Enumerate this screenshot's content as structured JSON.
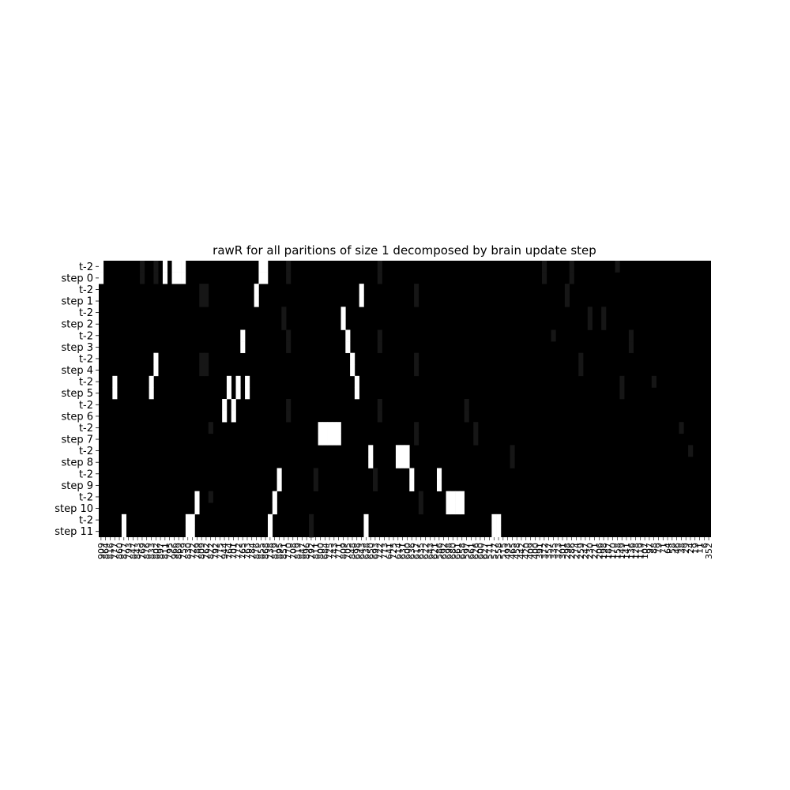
{
  "chart_data": {
    "type": "heatmap",
    "title": "rawR for all paritions of size 1 decomposed by brain update step",
    "xlabel": "",
    "ylabel": "",
    "colormap": "gray",
    "value_range": [
      0,
      1
    ],
    "grid": false,
    "legend": "none",
    "row_labels": [
      "t-2",
      "step 0",
      "t-2",
      "step 1",
      "t-2",
      "step 2",
      "t-2",
      "step 3",
      "t-2",
      "step 4",
      "t-2",
      "step 5",
      "t-2",
      "step 6",
      "t-2",
      "step 7",
      "t-2",
      "step 8",
      "t-2",
      "step 9",
      "t-2",
      "step 10",
      "t-2",
      "step 11"
    ],
    "n_columns": 134,
    "x_tick_labels": [
      "909",
      "864",
      "816",
      "777",
      "860",
      "877",
      "793",
      "847",
      "843",
      "769",
      "876",
      "833",
      "802",
      "897",
      "811",
      "795",
      "966",
      "869",
      "759",
      "830",
      "722",
      "789",
      "809",
      "762",
      "822",
      "792",
      "775",
      "944",
      "764",
      "701",
      "772",
      "765",
      "763",
      "784",
      "876",
      "855",
      "868",
      "738",
      "819",
      "895",
      "851",
      "770",
      "708",
      "819",
      "847",
      "896",
      "792",
      "811",
      "800",
      "684",
      "725",
      "743",
      "771",
      "809",
      "705",
      "848",
      "698",
      "643",
      "638",
      "650",
      "693",
      "722",
      "773",
      "641",
      "725",
      "614",
      "631",
      "600",
      "636",
      "617",
      "635",
      "622",
      "643",
      "621",
      "586",
      "692",
      "698",
      "680",
      "661",
      "658",
      "597",
      "661",
      "626",
      "600",
      "627",
      "571",
      "577",
      "558",
      "515",
      "493",
      "465",
      "458",
      "442",
      "420",
      "409",
      "400",
      "391",
      "372",
      "357",
      "335",
      "323",
      "301",
      "298",
      "286",
      "274",
      "259",
      "247",
      "230",
      "221",
      "206",
      "198",
      "187",
      "170",
      "158",
      "149",
      "141",
      "136",
      "128",
      "119",
      "107",
      "97",
      "88",
      "79",
      "71",
      "64",
      "58",
      "46",
      "38",
      "29",
      "24",
      "19",
      "11",
      "6",
      "352"
    ],
    "hot_cells": [
      {
        "row": 0,
        "cols": [
          0,
          14,
          16,
          17,
          18,
          35,
          36
        ]
      },
      {
        "row": 1,
        "cols": [
          0,
          14,
          16,
          17,
          18,
          35,
          36
        ]
      },
      {
        "row": 2,
        "cols": [
          34,
          57
        ]
      },
      {
        "row": 3,
        "cols": [
          34,
          57
        ]
      },
      {
        "row": 4,
        "cols": [
          53
        ]
      },
      {
        "row": 5,
        "cols": [
          53
        ]
      },
      {
        "row": 6,
        "cols": [
          31,
          54
        ]
      },
      {
        "row": 7,
        "cols": [
          31,
          54
        ]
      },
      {
        "row": 8,
        "cols": [
          12,
          55
        ]
      },
      {
        "row": 9,
        "cols": [
          12,
          55
        ]
      },
      {
        "row": 10,
        "cols": [
          3,
          11,
          28,
          30,
          32,
          56
        ]
      },
      {
        "row": 11,
        "cols": [
          3,
          11,
          28,
          30,
          32,
          56
        ]
      },
      {
        "row": 12,
        "cols": [
          27,
          29
        ]
      },
      {
        "row": 13,
        "cols": [
          27,
          29
        ]
      },
      {
        "row": 14,
        "cols": [
          48,
          49,
          50,
          51,
          52
        ]
      },
      {
        "row": 15,
        "cols": [
          48,
          49,
          50,
          51,
          52
        ]
      },
      {
        "row": 16,
        "cols": [
          59,
          65,
          66,
          67
        ]
      },
      {
        "row": 17,
        "cols": [
          59,
          65,
          66,
          67
        ]
      },
      {
        "row": 18,
        "cols": [
          39,
          68,
          74
        ]
      },
      {
        "row": 19,
        "cols": [
          39,
          68,
          74
        ]
      },
      {
        "row": 20,
        "cols": [
          21,
          38,
          76,
          77,
          78,
          79
        ]
      },
      {
        "row": 21,
        "cols": [
          21,
          38,
          76,
          77,
          78,
          79
        ]
      },
      {
        "row": 22,
        "cols": [
          5,
          19,
          20,
          37,
          58,
          86,
          87
        ]
      },
      {
        "row": 23,
        "cols": [
          5,
          19,
          20,
          37,
          58,
          86,
          87
        ]
      }
    ],
    "faint_cells": [
      {
        "row": 0,
        "cols": [
          9,
          12,
          41,
          61,
          97,
          103,
          113
        ]
      },
      {
        "row": 1,
        "cols": [
          9,
          12,
          41,
          61,
          97,
          103
        ]
      },
      {
        "row": 2,
        "cols": [
          22,
          23,
          69,
          102
        ]
      },
      {
        "row": 3,
        "cols": [
          22,
          23,
          69,
          102
        ]
      },
      {
        "row": 4,
        "cols": [
          40,
          107,
          110
        ]
      },
      {
        "row": 5,
        "cols": [
          40,
          107,
          110
        ]
      },
      {
        "row": 6,
        "cols": [
          41,
          61,
          99,
          116
        ]
      },
      {
        "row": 7,
        "cols": [
          41,
          61,
          116
        ]
      },
      {
        "row": 8,
        "cols": [
          22,
          23,
          69,
          105
        ]
      },
      {
        "row": 9,
        "cols": [
          22,
          23,
          69,
          105
        ]
      },
      {
        "row": 10,
        "cols": [
          114,
          121
        ]
      },
      {
        "row": 11,
        "cols": [
          114
        ]
      },
      {
        "row": 12,
        "cols": [
          41,
          61,
          80
        ]
      },
      {
        "row": 13,
        "cols": [
          41,
          61,
          80
        ]
      },
      {
        "row": 14,
        "cols": [
          24,
          69,
          82,
          127
        ]
      },
      {
        "row": 15,
        "cols": [
          69,
          82
        ]
      },
      {
        "row": 16,
        "cols": [
          90,
          129
        ]
      },
      {
        "row": 17,
        "cols": [
          90
        ]
      },
      {
        "row": 18,
        "cols": [
          47,
          60
        ]
      },
      {
        "row": 19,
        "cols": [
          47,
          60
        ]
      },
      {
        "row": 20,
        "cols": [
          70,
          24
        ]
      },
      {
        "row": 21,
        "cols": [
          70
        ]
      },
      {
        "row": 22,
        "cols": [
          46
        ]
      },
      {
        "row": 23,
        "cols": [
          46
        ]
      }
    ]
  }
}
